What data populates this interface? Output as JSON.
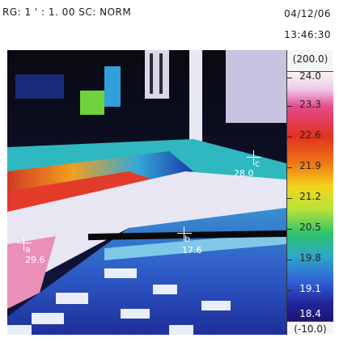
{
  "header": {
    "mode": "RG: 1 ' : 1. 00  SC: NORM",
    "date": "04/12/06",
    "time": "13:46:30"
  },
  "scale": {
    "max_label": "(200.0)",
    "min_label": "(-10.0)",
    "ticks": [
      "24.0",
      "23.3",
      "22.6",
      "21.9",
      "21.2",
      "20.5",
      "19.8",
      "19.1",
      "18.4"
    ]
  },
  "cursors": [
    {
      "letter": "a",
      "value": "29.6"
    },
    {
      "letter": "b",
      "value": "17.6"
    },
    {
      "letter": "c",
      "value": "28.0"
    }
  ],
  "colors": {
    "cold": "#1a1570",
    "cool": "#3262d8",
    "mid": "#2fc36b",
    "warm": "#f4d51a",
    "hot": "#e2321e",
    "hottest": "#f6f6f6"
  }
}
